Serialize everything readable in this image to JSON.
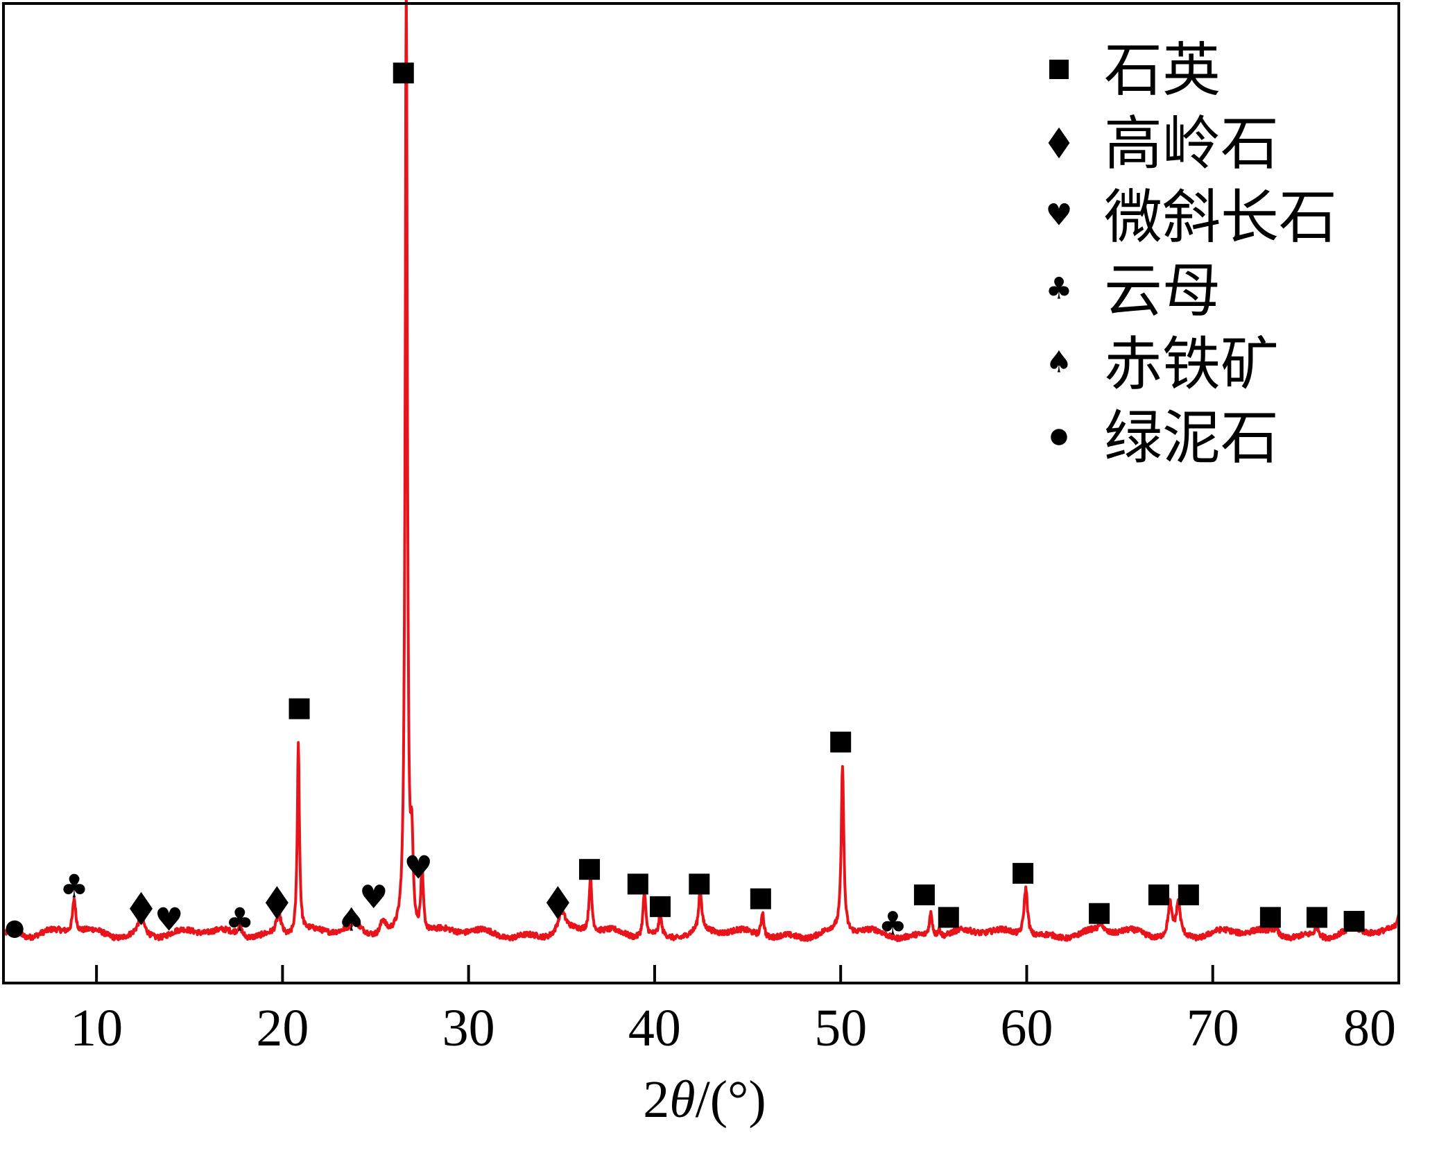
{
  "chart_data": {
    "type": "line",
    "xlabel_prefix": "2",
    "xlabel_symbol": "θ",
    "xlabel_suffix": "/(°)",
    "ylabel": "",
    "xlim": [
      5,
      80
    ],
    "ylim": [
      0,
      100
    ],
    "x_ticks": [
      10,
      20,
      30,
      40,
      50,
      60,
      70,
      80
    ],
    "grid": false,
    "line_color": "#e8141b",
    "legend": {
      "placement": "top-right",
      "entries": [
        {
          "marker": "square",
          "label": "石英"
        },
        {
          "marker": "diamond",
          "label": "高岭石"
        },
        {
          "marker": "heart",
          "label": "微斜长石"
        },
        {
          "marker": "club",
          "label": "云母"
        },
        {
          "marker": "spade",
          "label": "赤铁矿"
        },
        {
          "marker": "circle",
          "label": "绿泥石"
        }
      ]
    },
    "baseline": 5,
    "peaks": [
      {
        "x": 5.6,
        "h": 1.1,
        "w": 0.25
      },
      {
        "x": 8.8,
        "h": 3.5,
        "w": 0.1
      },
      {
        "x": 12.4,
        "h": 1.8,
        "w": 0.22
      },
      {
        "x": 17.7,
        "h": 1.0,
        "w": 0.15
      },
      {
        "x": 19.8,
        "h": 2.2,
        "w": 0.18
      },
      {
        "x": 20.85,
        "h": 19.5,
        "w": 0.07
      },
      {
        "x": 23.9,
        "h": 0.8,
        "w": 0.25
      },
      {
        "x": 25.4,
        "h": 1.6,
        "w": 0.18
      },
      {
        "x": 26.65,
        "h": 97.0,
        "w": 0.07
      },
      {
        "x": 26.95,
        "h": 8.0,
        "w": 0.08
      },
      {
        "x": 27.5,
        "h": 6.6,
        "w": 0.08
      },
      {
        "x": 35.0,
        "h": 2.2,
        "w": 0.25
      },
      {
        "x": 36.55,
        "h": 5.6,
        "w": 0.09
      },
      {
        "x": 39.45,
        "h": 4.6,
        "w": 0.09
      },
      {
        "x": 40.3,
        "h": 2.2,
        "w": 0.08
      },
      {
        "x": 42.45,
        "h": 4.3,
        "w": 0.09
      },
      {
        "x": 45.8,
        "h": 2.6,
        "w": 0.09
      },
      {
        "x": 50.1,
        "h": 17.1,
        "w": 0.08
      },
      {
        "x": 54.85,
        "h": 2.5,
        "w": 0.1
      },
      {
        "x": 55.3,
        "h": 0.8,
        "w": 0.1
      },
      {
        "x": 59.95,
        "h": 5.1,
        "w": 0.12
      },
      {
        "x": 64.0,
        "h": 1.0,
        "w": 0.12
      },
      {
        "x": 67.7,
        "h": 3.3,
        "w": 0.12
      },
      {
        "x": 68.15,
        "h": 3.4,
        "w": 0.12
      },
      {
        "x": 73.4,
        "h": 0.8,
        "w": 0.14
      },
      {
        "x": 75.6,
        "h": 1.0,
        "w": 0.14
      },
      {
        "x": 77.6,
        "h": 0.5,
        "w": 0.14
      },
      {
        "x": 80.0,
        "h": 1.8,
        "w": 0.12
      }
    ],
    "phase_markers": [
      {
        "marker": "circle",
        "x": 5.6,
        "y": 5.5
      },
      {
        "marker": "club",
        "x": 8.8,
        "y": 9.7
      },
      {
        "marker": "diamond",
        "x": 12.4,
        "y": 7.6
      },
      {
        "marker": "heart",
        "x": 13.9,
        "y": 6.3
      },
      {
        "marker": "club",
        "x": 17.7,
        "y": 6.3
      },
      {
        "marker": "diamond",
        "x": 19.7,
        "y": 8.2
      },
      {
        "marker": "square",
        "x": 20.9,
        "y": 28.0
      },
      {
        "marker": "spade",
        "x": 23.7,
        "y": 6.3
      },
      {
        "marker": "heart",
        "x": 24.9,
        "y": 8.6
      },
      {
        "marker": "square",
        "x": 26.5,
        "y": 92.9
      },
      {
        "marker": "heart",
        "x": 27.3,
        "y": 11.6
      },
      {
        "marker": "diamond",
        "x": 34.8,
        "y": 8.2
      },
      {
        "marker": "square",
        "x": 36.5,
        "y": 11.6
      },
      {
        "marker": "square",
        "x": 39.1,
        "y": 10.1
      },
      {
        "marker": "square",
        "x": 40.3,
        "y": 7.8
      },
      {
        "marker": "square",
        "x": 42.4,
        "y": 10.1
      },
      {
        "marker": "square",
        "x": 45.7,
        "y": 8.6
      },
      {
        "marker": "square",
        "x": 50.0,
        "y": 24.6
      },
      {
        "marker": "club",
        "x": 52.8,
        "y": 5.9
      },
      {
        "marker": "square",
        "x": 54.5,
        "y": 9.0
      },
      {
        "marker": "square",
        "x": 55.8,
        "y": 6.7
      },
      {
        "marker": "square",
        "x": 59.8,
        "y": 11.2
      },
      {
        "marker": "square",
        "x": 63.9,
        "y": 7.1
      },
      {
        "marker": "square",
        "x": 67.1,
        "y": 9.0
      },
      {
        "marker": "square",
        "x": 68.7,
        "y": 9.0
      },
      {
        "marker": "square",
        "x": 73.1,
        "y": 6.7
      },
      {
        "marker": "square",
        "x": 75.6,
        "y": 6.7
      },
      {
        "marker": "square",
        "x": 77.6,
        "y": 6.3
      }
    ]
  }
}
